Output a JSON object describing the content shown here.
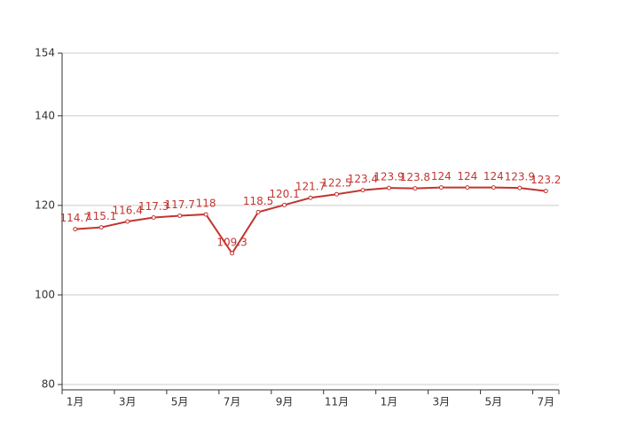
{
  "chart_data": {
    "type": "line",
    "categories": [
      "1月",
      null,
      "3月",
      null,
      "5月",
      null,
      "7月",
      null,
      "9月",
      null,
      "11月",
      null,
      "1月",
      null,
      "3月",
      null,
      "5月",
      null,
      "7月"
    ],
    "series": [
      {
        "color": "#c23531",
        "values": [
          114.7,
          115.1,
          116.4,
          117.3,
          117.7,
          118,
          109.3,
          118.5,
          120.1,
          121.7,
          122.5,
          123.4,
          123.9,
          123.8,
          124,
          124,
          124,
          123.9,
          123.2
        ]
      }
    ],
    "ylim": [
      80,
      154
    ],
    "yticks": [
      80,
      100,
      120,
      140,
      154
    ],
    "grid": true
  }
}
